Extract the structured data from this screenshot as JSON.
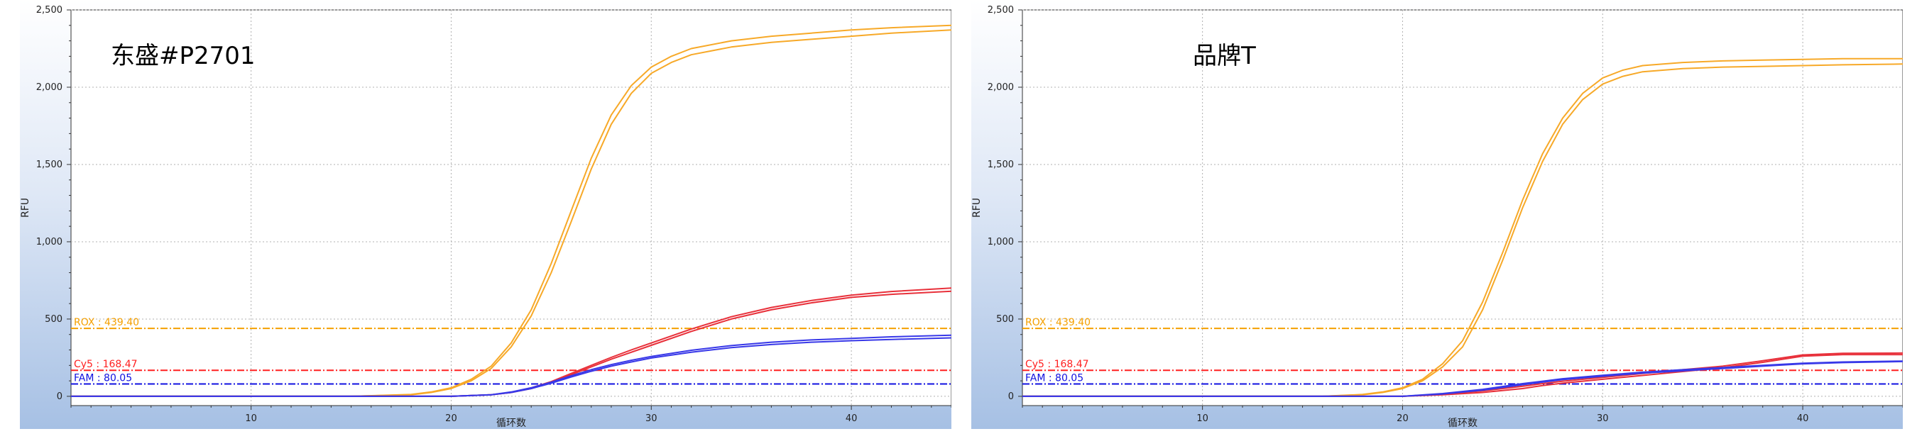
{
  "chart_data": [
    {
      "type": "line",
      "title": "东盛#P2701",
      "xlabel": "循环数",
      "ylabel": "RFU",
      "xlim": [
        1,
        45
      ],
      "ylim": [
        -60,
        2500
      ],
      "xticks": [
        10,
        20,
        30,
        40
      ],
      "xtick_labels": [
        "10",
        "20",
        "30",
        "40"
      ],
      "yticks": [
        0,
        500,
        1000,
        1500,
        2000,
        2500
      ],
      "ytick_labels": [
        "0",
        "500",
        "1,000",
        "1,500",
        "2,000",
        "2,500"
      ],
      "grid": true,
      "thresholds": [
        {
          "label": "ROX : 439.40",
          "value": 439.4,
          "color": "#f5a000"
        },
        {
          "label": "Cy5 : 168.47",
          "value": 168.47,
          "color": "#ff2020"
        },
        {
          "label": "FAM : 80.05",
          "value": 80.05,
          "color": "#1010e0"
        }
      ],
      "series": [
        {
          "color": "#f7a928",
          "x": [
            1,
            15,
            18,
            19,
            20,
            21,
            22,
            23,
            24,
            25,
            26,
            27,
            28,
            29,
            30,
            31,
            32,
            34,
            36,
            38,
            40,
            42,
            45
          ],
          "y": [
            0,
            0,
            10,
            25,
            50,
            100,
            180,
            320,
            520,
            800,
            1130,
            1470,
            1760,
            1960,
            2090,
            2160,
            2210,
            2260,
            2290,
            2310,
            2330,
            2350,
            2370
          ]
        },
        {
          "color": "#f7a928",
          "x": [
            1,
            15,
            18,
            19,
            20,
            21,
            22,
            23,
            24,
            25,
            26,
            27,
            28,
            29,
            30,
            31,
            32,
            34,
            36,
            38,
            40,
            42,
            45
          ],
          "y": [
            0,
            0,
            12,
            28,
            55,
            110,
            195,
            345,
            560,
            860,
            1200,
            1540,
            1820,
            2010,
            2130,
            2200,
            2250,
            2300,
            2330,
            2350,
            2370,
            2385,
            2400
          ]
        },
        {
          "color": "#e8303a",
          "x": [
            1,
            20,
            22,
            23,
            24,
            25,
            26,
            27,
            28,
            29,
            30,
            32,
            34,
            36,
            38,
            40,
            42,
            45
          ],
          "y": [
            0,
            0,
            10,
            25,
            50,
            90,
            140,
            190,
            240,
            285,
            330,
            420,
            500,
            560,
            605,
            640,
            660,
            680
          ]
        },
        {
          "color": "#e8303a",
          "x": [
            1,
            20,
            22,
            23,
            24,
            25,
            26,
            27,
            28,
            29,
            30,
            32,
            34,
            36,
            38,
            40,
            42,
            45
          ],
          "y": [
            0,
            0,
            10,
            25,
            55,
            95,
            148,
            200,
            252,
            300,
            345,
            435,
            515,
            575,
            620,
            655,
            678,
            700
          ]
        },
        {
          "color": "#3838e8",
          "x": [
            1,
            20,
            22,
            23,
            24,
            25,
            26,
            27,
            28,
            29,
            30,
            32,
            34,
            36,
            38,
            40,
            42,
            45
          ],
          "y": [
            0,
            0,
            10,
            25,
            50,
            85,
            125,
            162,
            195,
            222,
            248,
            285,
            315,
            335,
            350,
            360,
            368,
            378
          ]
        },
        {
          "color": "#3838e8",
          "x": [
            1,
            20,
            22,
            23,
            24,
            25,
            26,
            27,
            28,
            29,
            30,
            32,
            34,
            36,
            38,
            40,
            42,
            45
          ],
          "y": [
            0,
            0,
            10,
            28,
            55,
            92,
            133,
            172,
            205,
            233,
            258,
            298,
            328,
            350,
            365,
            375,
            385,
            395
          ]
        }
      ]
    },
    {
      "type": "line",
      "title": "品牌T",
      "xlabel": "循环数",
      "ylabel": "RFU",
      "xlim": [
        1,
        45
      ],
      "ylim": [
        -60,
        2500
      ],
      "xticks": [
        10,
        20,
        30,
        40
      ],
      "xtick_labels": [
        "10",
        "20",
        "30",
        "40"
      ],
      "yticks": [
        0,
        500,
        1000,
        1500,
        2000,
        2500
      ],
      "ytick_labels": [
        "0",
        "500",
        "1,000",
        "1,500",
        "2,000",
        "2,500"
      ],
      "grid": true,
      "thresholds": [
        {
          "label": "ROX : 439.40",
          "value": 439.4,
          "color": "#f5a000"
        },
        {
          "label": "Cy5 : 168.47",
          "value": 168.47,
          "color": "#ff2020"
        },
        {
          "label": "FAM : 80.05",
          "value": 80.05,
          "color": "#1010e0"
        }
      ],
      "series": [
        {
          "color": "#f7a928",
          "x": [
            1,
            16,
            18,
            19,
            20,
            21,
            22,
            23,
            24,
            25,
            26,
            27,
            28,
            29,
            30,
            31,
            32,
            34,
            36,
            38,
            40,
            42,
            45
          ],
          "y": [
            0,
            0,
            10,
            25,
            50,
            100,
            190,
            320,
            560,
            880,
            1220,
            1520,
            1760,
            1920,
            2020,
            2070,
            2100,
            2120,
            2130,
            2135,
            2140,
            2145,
            2150
          ]
        },
        {
          "color": "#f7a928",
          "x": [
            1,
            16,
            18,
            19,
            20,
            21,
            22,
            23,
            24,
            25,
            26,
            27,
            28,
            29,
            30,
            31,
            32,
            34,
            36,
            38,
            40,
            42,
            45
          ],
          "y": [
            0,
            0,
            12,
            28,
            55,
            110,
            210,
            360,
            610,
            930,
            1270,
            1570,
            1800,
            1960,
            2060,
            2110,
            2140,
            2160,
            2170,
            2175,
            2180,
            2185,
            2185
          ]
        },
        {
          "color": "#e8303a",
          "x": [
            1,
            20,
            22,
            24,
            26,
            27,
            28,
            30,
            32,
            34,
            36,
            38,
            40,
            42,
            45
          ],
          "y": [
            0,
            0,
            10,
            25,
            50,
            70,
            85,
            110,
            135,
            160,
            185,
            220,
            260,
            270,
            270
          ]
        },
        {
          "color": "#e8303a",
          "x": [
            1,
            20,
            22,
            24,
            26,
            27,
            28,
            30,
            32,
            34,
            36,
            38,
            40,
            42,
            45
          ],
          "y": [
            0,
            0,
            15,
            35,
            65,
            82,
            98,
            122,
            148,
            172,
            195,
            230,
            268,
            278,
            280
          ]
        },
        {
          "color": "#3838e8",
          "x": [
            1,
            20,
            22,
            24,
            26,
            27,
            28,
            30,
            32,
            34,
            36,
            38,
            40,
            42,
            45
          ],
          "y": [
            0,
            0,
            15,
            40,
            75,
            92,
            108,
            130,
            150,
            165,
            180,
            195,
            210,
            218,
            225
          ]
        },
        {
          "color": "#3838e8",
          "x": [
            1,
            20,
            22,
            24,
            26,
            27,
            28,
            30,
            32,
            34,
            36,
            38,
            40,
            42,
            45
          ],
          "y": [
            0,
            0,
            18,
            45,
            82,
            98,
            114,
            136,
            156,
            172,
            186,
            200,
            214,
            222,
            228
          ]
        }
      ]
    }
  ]
}
